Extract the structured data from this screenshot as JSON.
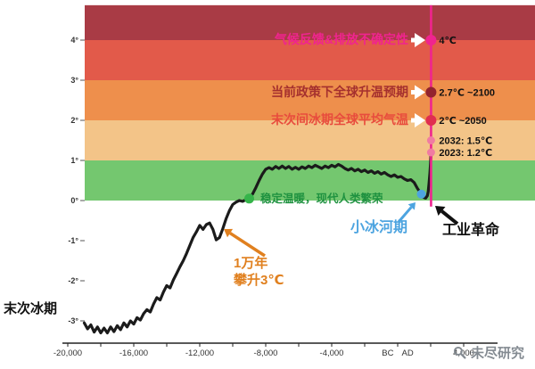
{
  "chart_data": {
    "type": "line",
    "watermark": "未尽研究",
    "x_axis": {
      "ticks": [
        {
          "label": "-20,000",
          "year": -20000
        },
        {
          "label": "-16,000",
          "year": -16000
        },
        {
          "label": "-12,000",
          "year": -12000
        },
        {
          "label": "-8,000",
          "year": -8000
        },
        {
          "label": "-4,000",
          "year": -4000
        },
        {
          "label": "BC",
          "year": -600
        },
        {
          "label": "AD",
          "year": 600
        },
        {
          "label": "4,000",
          "year": 4000
        }
      ],
      "range_years": [
        -20000,
        4000
      ]
    },
    "y_axis": {
      "unit": "°C",
      "range": [
        -3.5,
        4.9
      ],
      "ticks": [
        {
          "label": "4°",
          "value": 4
        },
        {
          "label": "3°",
          "value": 3
        },
        {
          "label": "2°",
          "value": 2
        },
        {
          "label": "1°",
          "value": 1
        },
        {
          "label": "0°",
          "value": 0
        },
        {
          "label": "-1°",
          "value": -1
        },
        {
          "label": "-2°",
          "value": -2
        },
        {
          "label": "-3°",
          "value": -3
        }
      ]
    },
    "bands": [
      {
        "from": 4,
        "to": 4.87,
        "color": "#a93b45"
      },
      {
        "from": 3,
        "to": 4,
        "color": "#e25a4a"
      },
      {
        "from": 2,
        "to": 3,
        "color": "#ee8f4c"
      },
      {
        "from": 1,
        "to": 2,
        "color": "#f3c488"
      },
      {
        "from": 0,
        "to": 1,
        "color": "#74c76f"
      }
    ],
    "projection_line": {
      "year": 2023,
      "color": "#f0248f",
      "top_temp": 4.87,
      "bottom_temp": -0.15
    },
    "series": [
      {
        "name": "temperature",
        "color": "#1b1b1b",
        "points": [
          [
            -19000,
            -3.05
          ],
          [
            -18800,
            -3.2
          ],
          [
            -18600,
            -3.1
          ],
          [
            -18400,
            -3.28
          ],
          [
            -18200,
            -3.15
          ],
          [
            -18000,
            -3.3
          ],
          [
            -17800,
            -3.18
          ],
          [
            -17600,
            -3.3
          ],
          [
            -17400,
            -3.15
          ],
          [
            -17200,
            -3.27
          ],
          [
            -17000,
            -3.12
          ],
          [
            -16800,
            -3.22
          ],
          [
            -16600,
            -3.05
          ],
          [
            -16400,
            -3.15
          ],
          [
            -16200,
            -3.0
          ],
          [
            -16000,
            -3.08
          ],
          [
            -15800,
            -2.92
          ],
          [
            -15600,
            -2.98
          ],
          [
            -15400,
            -2.82
          ],
          [
            -15200,
            -2.72
          ],
          [
            -15000,
            -2.78
          ],
          [
            -14800,
            -2.58
          ],
          [
            -14600,
            -2.42
          ],
          [
            -14400,
            -2.48
          ],
          [
            -14200,
            -2.28
          ],
          [
            -14000,
            -2.12
          ],
          [
            -13800,
            -2.18
          ],
          [
            -13600,
            -1.98
          ],
          [
            -13400,
            -1.82
          ],
          [
            -13200,
            -1.65
          ],
          [
            -13000,
            -1.5
          ],
          [
            -12800,
            -1.32
          ],
          [
            -12600,
            -1.12
          ],
          [
            -12400,
            -0.92
          ],
          [
            -12200,
            -0.78
          ],
          [
            -12000,
            -0.62
          ],
          [
            -11800,
            -0.72
          ],
          [
            -11600,
            -0.6
          ],
          [
            -11400,
            -0.56
          ],
          [
            -11200,
            -0.72
          ],
          [
            -11000,
            -0.98
          ],
          [
            -10800,
            -0.92
          ],
          [
            -10600,
            -0.7
          ],
          [
            -10400,
            -0.45
          ],
          [
            -10200,
            -0.25
          ],
          [
            -10000,
            -0.1
          ],
          [
            -9800,
            -0.04
          ],
          [
            -9600,
            0.0
          ],
          [
            -9400,
            -0.02
          ],
          [
            -9200,
            0.02
          ],
          [
            -9000,
            0.05
          ],
          [
            -8800,
            0.16
          ],
          [
            -8600,
            0.32
          ],
          [
            -8400,
            0.5
          ],
          [
            -8200,
            0.66
          ],
          [
            -8000,
            0.78
          ],
          [
            -7800,
            0.82
          ],
          [
            -7600,
            0.78
          ],
          [
            -7400,
            0.85
          ],
          [
            -7200,
            0.8
          ],
          [
            -7000,
            0.86
          ],
          [
            -6800,
            0.8
          ],
          [
            -6600,
            0.85
          ],
          [
            -6400,
            0.78
          ],
          [
            -6200,
            0.83
          ],
          [
            -6000,
            0.78
          ],
          [
            -5800,
            0.84
          ],
          [
            -5600,
            0.8
          ],
          [
            -5400,
            0.86
          ],
          [
            -5200,
            0.82
          ],
          [
            -5000,
            0.88
          ],
          [
            -4800,
            0.84
          ],
          [
            -4600,
            0.8
          ],
          [
            -4400,
            0.86
          ],
          [
            -4200,
            0.82
          ],
          [
            -4000,
            0.88
          ],
          [
            -3800,
            0.84
          ],
          [
            -3600,
            0.9
          ],
          [
            -3400,
            0.86
          ],
          [
            -3200,
            0.8
          ],
          [
            -3000,
            0.76
          ],
          [
            -2800,
            0.8
          ],
          [
            -2600,
            0.74
          ],
          [
            -2400,
            0.78
          ],
          [
            -2200,
            0.72
          ],
          [
            -2000,
            0.76
          ],
          [
            -1800,
            0.7
          ],
          [
            -1600,
            0.74
          ],
          [
            -1400,
            0.68
          ],
          [
            -1200,
            0.72
          ],
          [
            -1000,
            0.66
          ],
          [
            -800,
            0.7
          ],
          [
            -600,
            0.64
          ],
          [
            -400,
            0.6
          ],
          [
            -200,
            0.64
          ],
          [
            0,
            0.58
          ],
          [
            200,
            0.6
          ],
          [
            400,
            0.54
          ],
          [
            600,
            0.5
          ],
          [
            800,
            0.52
          ],
          [
            1000,
            0.45
          ],
          [
            1200,
            0.3
          ],
          [
            1400,
            0.18
          ],
          [
            1550,
            0.08
          ],
          [
            1700,
            0.06
          ],
          [
            1800,
            0.12
          ],
          [
            1850,
            0.22
          ],
          [
            1900,
            0.42
          ],
          [
            1950,
            0.68
          ],
          [
            1990,
            0.92
          ],
          [
            2023,
            1.2
          ]
        ]
      }
    ],
    "markers": [
      {
        "id": "limit-4c",
        "temp": 4.0,
        "label": "4℃",
        "color": "#f0248f",
        "r": 6
      },
      {
        "id": "policy-2-7c",
        "temp": 2.7,
        "label": "2.7℃ ~2100",
        "color": "#93232e",
        "r": 6
      },
      {
        "id": "limit-2c",
        "temp": 2.0,
        "label": "2℃ ~2050",
        "color": "#e02e4f",
        "r": 6
      },
      {
        "id": "year-2032",
        "temp": 1.5,
        "label": "2032: 1.5℃",
        "color": "#f07ca2",
        "r": 4.5
      },
      {
        "id": "year-2023",
        "temp": 1.2,
        "label": "2023: 1.2℃",
        "color": "#f07ca2",
        "r": 4.5
      },
      {
        "id": "stable-warmth",
        "year": -9000,
        "temp": 0.05,
        "label": "",
        "color": "#35b44a",
        "r": 5.5
      },
      {
        "id": "little-ice-age",
        "year": 1430,
        "temp": 0.16,
        "label": "",
        "color": "#4da4e0",
        "r": 5
      }
    ],
    "annotations": [
      {
        "id": "uncertainty",
        "text": "气候反馈&排放不确定性",
        "color": "#f0248f"
      },
      {
        "id": "current-policy",
        "text": "当前政策下全球升温预期",
        "color": "#a5302e"
      },
      {
        "id": "interglacial",
        "text": "末次间冰期全球平均气温",
        "color": "#e84c3d"
      },
      {
        "id": "stable-warmth",
        "text": "稳定温暖，现代人类繁荣",
        "color": "#1f9240"
      },
      {
        "id": "little-ice-age",
        "text": "小冰河期",
        "color": "#4da4e0"
      },
      {
        "id": "industrial-revolution",
        "text": "工业革命",
        "color": "#111111"
      },
      {
        "id": "rise-3c",
        "text": "1万年\n攀升3℃",
        "color": "#e0801f"
      },
      {
        "id": "last-glacial",
        "text": "末次冰期",
        "color": "#111111"
      }
    ],
    "grid": false,
    "legend": "none"
  }
}
